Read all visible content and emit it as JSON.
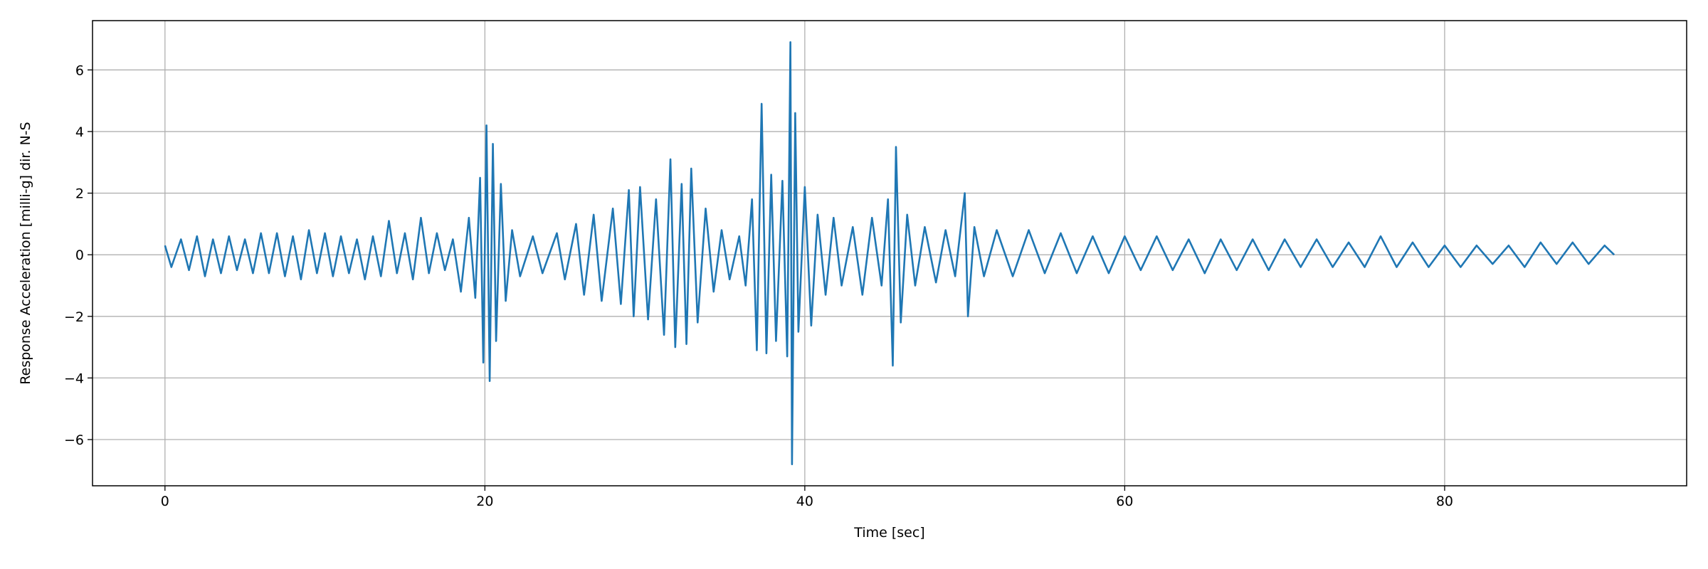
{
  "chart_data": {
    "type": "line",
    "xlabel": "Time [sec]",
    "ylabel": "Response Acceleration [milli-g] dir. N-S",
    "xlim": [
      -4.53,
      95.13
    ],
    "ylim": [
      -7.5,
      7.6
    ],
    "xticks": [
      0,
      20,
      40,
      60,
      80
    ],
    "yticks": [
      {
        "value": -6,
        "label": "−6"
      },
      {
        "value": -4,
        "label": "−4"
      },
      {
        "value": -2,
        "label": "−2"
      },
      0,
      2,
      4,
      6
    ],
    "grid": true,
    "x": [
      0,
      0.4,
      1,
      1.5,
      2,
      2.5,
      3,
      3.5,
      4,
      4.5,
      5,
      5.5,
      6,
      6.5,
      7,
      7.5,
      8,
      8.5,
      9,
      9.5,
      10,
      10.5,
      11,
      11.5,
      12,
      12.5,
      13,
      13.5,
      14,
      14.5,
      15,
      15.5,
      16,
      16.5,
      17,
      17.5,
      18,
      18.5,
      19,
      19.4,
      19.7,
      19.9,
      20.1,
      20.3,
      20.5,
      20.7,
      21,
      21.3,
      21.7,
      22.2,
      23,
      23.6,
      24.5,
      25,
      25.7,
      26.2,
      26.8,
      27.3,
      28,
      28.5,
      29,
      29.3,
      29.7,
      30.2,
      30.7,
      31.2,
      31.6,
      31.9,
      32.3,
      32.6,
      32.9,
      33.3,
      33.8,
      34.3,
      34.8,
      35.3,
      35.9,
      36.3,
      36.7,
      37,
      37.3,
      37.6,
      37.9,
      38.2,
      38.6,
      38.9,
      39.1,
      39.2,
      39.4,
      39.6,
      40,
      40.4,
      40.8,
      41.3,
      41.8,
      42.3,
      43,
      43.6,
      44.2,
      44.8,
      45.2,
      45.5,
      45.7,
      46,
      46.4,
      46.9,
      47.5,
      48.2,
      48.8,
      49.4,
      50,
      50.2,
      50.6,
      51.2,
      52,
      53,
      54,
      55,
      56,
      57,
      58,
      59,
      60,
      61,
      62,
      63,
      64,
      65,
      66,
      67,
      68,
      69,
      70,
      71,
      72,
      73,
      74,
      75,
      76,
      77,
      78,
      79,
      80,
      81,
      82,
      83,
      84,
      85,
      86,
      87,
      88,
      89,
      90,
      90.6
    ],
    "series": [
      {
        "color": "#1f77b4",
        "values": [
          0.3,
          -0.4,
          0.5,
          -0.5,
          0.6,
          -0.7,
          0.5,
          -0.6,
          0.6,
          -0.5,
          0.5,
          -0.6,
          0.7,
          -0.6,
          0.7,
          -0.7,
          0.6,
          -0.8,
          0.8,
          -0.6,
          0.7,
          -0.7,
          0.6,
          -0.6,
          0.5,
          -0.8,
          0.6,
          -0.7,
          1.1,
          -0.6,
          0.7,
          -0.8,
          1.2,
          -0.6,
          0.7,
          -0.5,
          0.5,
          -1.2,
          1.2,
          -1.4,
          2.5,
          -3.5,
          4.2,
          -4.1,
          3.6,
          -2.8,
          2.3,
          -1.5,
          0.8,
          -0.7,
          0.6,
          -0.6,
          0.7,
          -0.8,
          1.0,
          -1.3,
          1.3,
          -1.5,
          1.5,
          -1.6,
          2.1,
          -2.0,
          2.2,
          -2.1,
          1.8,
          -2.6,
          3.1,
          -3.0,
          2.3,
          -2.9,
          2.8,
          -2.2,
          1.5,
          -1.2,
          0.8,
          -0.8,
          0.6,
          -1.0,
          1.8,
          -3.1,
          4.9,
          -3.2,
          2.6,
          -2.8,
          2.4,
          -3.3,
          6.9,
          -6.8,
          4.6,
          -2.5,
          2.2,
          -2.3,
          1.3,
          -1.3,
          1.2,
          -1.0,
          0.9,
          -1.3,
          1.2,
          -1.0,
          1.8,
          -3.6,
          3.5,
          -2.2,
          1.3,
          -1.0,
          0.9,
          -0.9,
          0.8,
          -0.7,
          2.0,
          -2.0,
          0.9,
          -0.7,
          0.8,
          -0.7,
          0.8,
          -0.6,
          0.7,
          -0.6,
          0.6,
          -0.6,
          0.6,
          -0.5,
          0.6,
          -0.5,
          0.5,
          -0.6,
          0.5,
          -0.5,
          0.5,
          -0.5,
          0.5,
          -0.4,
          0.5,
          -0.4,
          0.4,
          -0.4,
          0.6,
          -0.4,
          0.4,
          -0.4,
          0.3,
          -0.4,
          0.3,
          -0.3,
          0.3,
          -0.4,
          0.4,
          -0.3,
          0.4,
          -0.3,
          0.3,
          0
        ]
      }
    ]
  }
}
